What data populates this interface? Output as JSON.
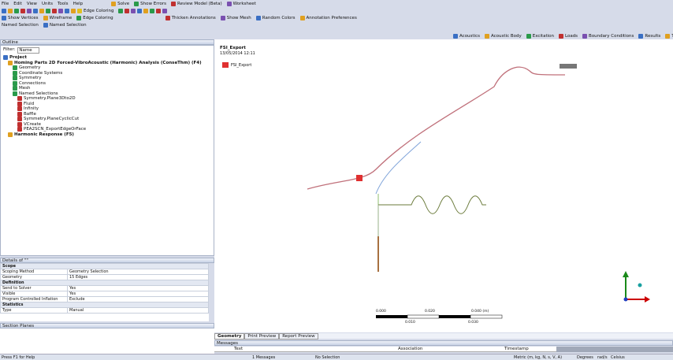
{
  "menu": [
    "File",
    "Edit",
    "View",
    "Units",
    "Tools",
    "Help",
    "Solve",
    "Show Errors",
    "Review Model (Beta)",
    "Worksheet"
  ],
  "toolbar": [
    "Edge Coloring"
  ],
  "toolbar2": [
    "Show Vertices",
    "Wireframe",
    "Edge Coloring",
    "Thicken Annotations",
    "Show Mesh",
    "Random Colors",
    "Annotation Preferences"
  ],
  "named_selection_bar": [
    "Named Selection",
    "Named Selection"
  ],
  "context_toolbar": [
    "Acoustics",
    "Acoustic Body",
    "Excitation",
    "Loads",
    "Boundary Conditions",
    "Results",
    "Tools"
  ],
  "outline": {
    "title": "Outline",
    "filter_label": "Filter:",
    "filter_value": "Name",
    "tree": {
      "label": "Project",
      "children": [
        {
          "label": "Homing Parts 2D Forced-VibroAcoustic (Harmonic) Analysis (ConseThm) (F4)",
          "children": [
            {
              "label": "Geometry"
            },
            {
              "label": "Coordinate Systems"
            },
            {
              "label": "Symmetry"
            },
            {
              "label": "Connections"
            },
            {
              "label": "Mesh"
            },
            {
              "label": "Named Selections",
              "children": [
                {
                  "label": "Symmetry.Plane3Dto2D"
                },
                {
                  "label": "Fluid"
                },
                {
                  "label": "Infinity"
                },
                {
                  "label": "Baffle"
                },
                {
                  "label": "Symmetry.PlaneCyclicCut"
                },
                {
                  "label": "VCreate"
                },
                {
                  "label": "PEA2SCN_ExportEdgeOrFace"
                }
              ]
            }
          ]
        },
        {
          "label": "Harmonic Response (F5)"
        }
      ]
    }
  },
  "details": {
    "title": "Details of \"\"",
    "groups": [
      {
        "name": "Scope",
        "rows": [
          [
            "Scoping Method",
            "Geometry Selection"
          ],
          [
            "Geometry",
            "15 Edges"
          ]
        ]
      },
      {
        "name": "Definition",
        "rows": [
          [
            "Send to Solver",
            "Yes"
          ],
          [
            "Visible",
            "Yes"
          ],
          [
            "Program Controlled Inflation",
            "Exclude"
          ]
        ]
      },
      {
        "name": "Statistics",
        "rows": [
          [
            "Type",
            "Manual"
          ]
        ]
      }
    ]
  },
  "section_planes": {
    "title": "Section Planes"
  },
  "viewport": {
    "name": "FSI_Export",
    "date": "13/05/2014 12:11",
    "legend": "FSI_Export",
    "scale_top": [
      "0.000",
      "0.020",
      "0.040 (m)"
    ],
    "scale_bottom": [
      "0.010",
      "0.030"
    ]
  },
  "tabs": [
    "Geometry",
    "Print Preview",
    "Report Preview"
  ],
  "messages": {
    "title": "Messages",
    "columns": [
      "Text",
      "Association",
      "Timestamp"
    ]
  },
  "status": [
    "Press F1 for Help",
    "1 Messages",
    "No Selection",
    "Metric (m, kg, N, s, V, A)",
    "Degrees",
    "rad/s",
    "Celsius"
  ]
}
